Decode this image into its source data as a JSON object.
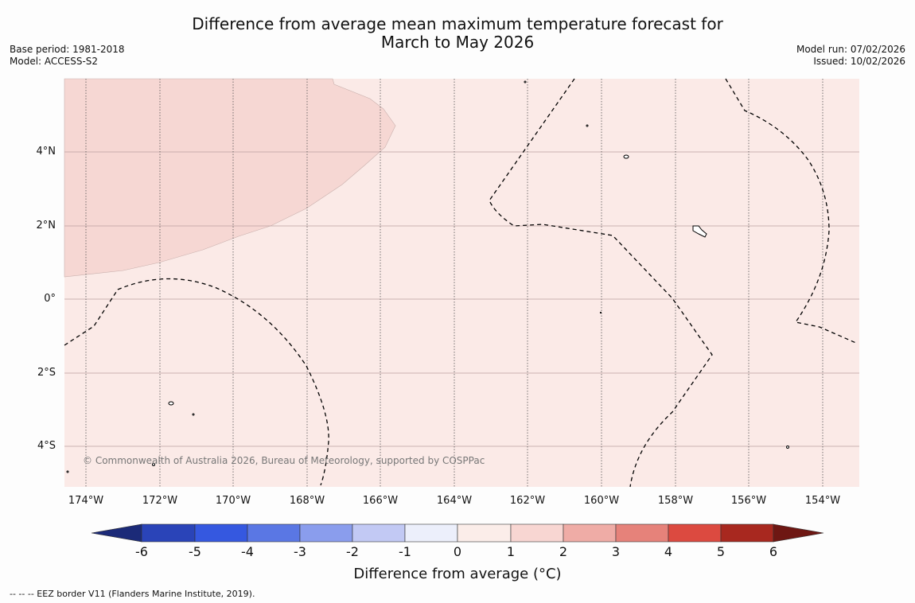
{
  "title_line1": "Difference from average mean maximum temperature forecast for",
  "title_line2": "March to May 2026",
  "base_period": "Base period: 1981-2018",
  "model": "Model: ACCESS-S2",
  "model_run": "Model run: 07/02/2026",
  "issued": "Issued: 10/02/2026",
  "copyright": "© Commonwealth of Australia 2026, Bureau of Meteorology, supported by COSPPac",
  "footnote": "--  --  -- EEZ border V11 (Flanders Marine Institute, 2019).",
  "lat_labels": [
    "4°N",
    "2°N",
    "0°",
    "2°S",
    "4°S"
  ],
  "lon_labels": [
    "174°W",
    "172°W",
    "170°W",
    "168°W",
    "166°W",
    "164°W",
    "162°W",
    "160°W",
    "158°W",
    "156°W",
    "154°W"
  ],
  "colorbar": {
    "label": "Difference from average (°C)",
    "ticks": [
      "-6",
      "-5",
      "-4",
      "-3",
      "-2",
      "-1",
      "0",
      "1",
      "2",
      "3",
      "4",
      "5",
      "6"
    ],
    "colors": [
      "#1b2a78",
      "#2a44b8",
      "#3558e0",
      "#5a77e4",
      "#8a9ded",
      "#c2c9f4",
      "#eceffb",
      "#fbede9",
      "#f8d6d2",
      "#efaca6",
      "#e6827a",
      "#dc4a40",
      "#a8281f",
      "#6e1713"
    ]
  },
  "map_fills": {
    "anomaly_0_1": "#fbeae7",
    "anomaly_1_2": "#f6d7d3"
  }
}
